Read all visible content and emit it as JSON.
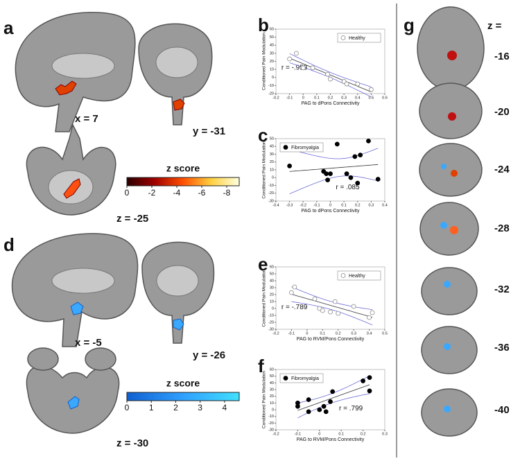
{
  "figure": {
    "panels": [
      "a",
      "b",
      "c",
      "d",
      "e",
      "f",
      "g"
    ],
    "coords": [
      "x = 7",
      "y = -31",
      "z = -25",
      "x = -5",
      "y = -26",
      "z = -30"
    ],
    "slices_header": "z =",
    "slices": [
      -16,
      -20,
      -24,
      -28,
      -32,
      -36,
      -40
    ]
  },
  "colorbars": [
    {
      "title": "z score",
      "lim": [
        0,
        -9
      ],
      "ticks": [
        0,
        -2,
        -4,
        -6,
        -8
      ],
      "colors": [
        "#2a0000",
        "#a00000",
        "#ff5000",
        "#ffd040",
        "#ffffe0"
      ]
    },
    {
      "title": "z score",
      "lim": [
        0,
        4.6
      ],
      "ticks": [
        0,
        1,
        2,
        3,
        4
      ],
      "colors": [
        "#1060d0",
        "#30a0ff",
        "#40e0ff"
      ]
    }
  ],
  "chart_data": [
    {
      "type": "scatter",
      "xlabel": "PAG to dPons Connectivity",
      "ylabel": "Conditioned Pain Modulation",
      "xlim": [
        -0.2,
        0.6
      ],
      "xticks": [
        -0.2,
        -0.1,
        0,
        0.1,
        0.2,
        0.3,
        0.4,
        0.5,
        0.6
      ],
      "ylim": [
        -20,
        60
      ],
      "yticks": [
        -20,
        -10,
        0,
        10,
        20,
        30,
        40,
        50,
        60
      ],
      "legend": "upper right",
      "annotation": "r = -.953",
      "x": [
        -0.1,
        -0.05,
        0,
        0.07,
        0.18,
        0.2,
        0.3,
        0.32,
        0.4,
        0.5
      ],
      "series": [
        {
          "name": "Healthy",
          "color": "#888888",
          "marker": "open",
          "values": [
            23,
            30,
            12,
            12,
            4,
            -2,
            -5,
            -8,
            -8,
            -15
          ]
        }
      ]
    },
    {
      "type": "scatter",
      "xlabel": "PAG to dPons Connectivity",
      "ylabel": "Conditioned Pain Modulation",
      "xlim": [
        -0.4,
        0.4
      ],
      "xticks": [
        -0.4,
        -0.3,
        -0.2,
        -0.1,
        0,
        0.1,
        0.2,
        0.3,
        0.4
      ],
      "ylim": [
        -30,
        50
      ],
      "yticks": [
        -30,
        -20,
        -10,
        0,
        10,
        20,
        30,
        40,
        50
      ],
      "legend": "upper left",
      "annotation": "r = .085",
      "x": [
        -0.3,
        -0.05,
        -0.03,
        0,
        -0.02,
        0.05,
        0.12,
        0.15,
        0.18,
        0.2,
        0.22,
        0.28,
        0.35
      ],
      "series": [
        {
          "name": "Fibromyalgia",
          "color": "#000000",
          "marker": "filled",
          "values": [
            15,
            8,
            5,
            5,
            -3,
            43,
            5,
            0,
            27,
            -7,
            29,
            47,
            -2
          ]
        }
      ]
    },
    {
      "type": "scatter",
      "xlabel": "PAG to RVM/Pons Connectivity",
      "ylabel": "Conditioned Pain Modulation",
      "xlim": [
        -0.2,
        0.5
      ],
      "xticks": [
        -0.2,
        -0.1,
        0,
        0.1,
        0.2,
        0.3,
        0.4,
        0.5
      ],
      "ylim": [
        -30,
        60
      ],
      "yticks": [
        -30,
        -20,
        -10,
        0,
        10,
        20,
        30,
        40,
        50,
        60
      ],
      "legend": "upper right",
      "annotation": "r = -.789",
      "x": [
        -0.1,
        -0.08,
        0.05,
        0.08,
        0.1,
        0.15,
        0.18,
        0.2,
        0.3,
        0.4,
        0.42
      ],
      "series": [
        {
          "name": "Healthy",
          "color": "#888888",
          "marker": "open",
          "values": [
            23,
            31,
            14,
            0,
            -3,
            -5,
            10,
            -7,
            3,
            -13,
            -6
          ]
        }
      ]
    },
    {
      "type": "scatter",
      "xlabel": "PAG to RVM/Pons Connectivity",
      "ylabel": "Conditioned Pain Modulation",
      "xlim": [
        -0.2,
        0.3
      ],
      "xticks": [
        -0.2,
        -0.1,
        0,
        0.1,
        0.2,
        0.3
      ],
      "ylim": [
        -30,
        60
      ],
      "yticks": [
        -30,
        -20,
        -10,
        0,
        10,
        20,
        30,
        40,
        50,
        60
      ],
      "legend": "upper left",
      "annotation": "r = .799",
      "x": [
        -0.1,
        -0.1,
        -0.05,
        -0.05,
        0,
        0.02,
        0.03,
        0.05,
        0.06,
        0.2,
        0.23,
        0.23
      ],
      "series": [
        {
          "name": "Fibromyalgia",
          "color": "#000000",
          "marker": "filled",
          "values": [
            10,
            5,
            15,
            -3,
            0,
            5,
            -3,
            12,
            27,
            43,
            48,
            28
          ]
        }
      ]
    }
  ]
}
